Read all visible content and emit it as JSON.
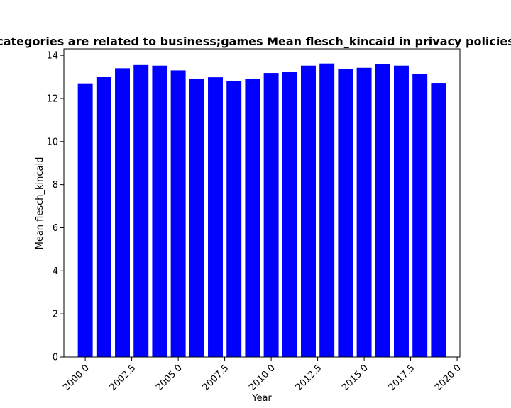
{
  "chart_data": {
    "type": "bar",
    "title": "categories are related to business;games Mean flesch_kincaid in privacy policies",
    "xlabel": "Year",
    "ylabel": "Mean flesch_kincaid",
    "x": [
      2000,
      2001,
      2002,
      2003,
      2004,
      2005,
      2006,
      2007,
      2008,
      2009,
      2010,
      2011,
      2012,
      2013,
      2014,
      2015,
      2016,
      2017,
      2018,
      2019
    ],
    "values": [
      12.7,
      13.0,
      13.4,
      13.55,
      13.52,
      13.3,
      12.92,
      12.98,
      12.82,
      12.92,
      13.18,
      13.22,
      13.52,
      13.62,
      13.38,
      13.42,
      13.58,
      13.52,
      13.12,
      12.72
    ],
    "xlim": [
      1998.85,
      2020.15
    ],
    "ylim": [
      0,
      14.3
    ],
    "x_ticks": [
      2000.0,
      2002.5,
      2005.0,
      2007.5,
      2010.0,
      2012.5,
      2015.0,
      2017.5,
      2020.0
    ],
    "x_tick_labels": [
      "2000.0",
      "2002.5",
      "2005.0",
      "2007.5",
      "2010.0",
      "2012.5",
      "2015.0",
      "2017.5",
      "2020.0"
    ],
    "y_ticks": [
      0,
      2,
      4,
      6,
      8,
      10,
      12,
      14
    ],
    "y_tick_labels": [
      "0",
      "2",
      "4",
      "6",
      "8",
      "10",
      "12",
      "14"
    ],
    "bar_color": "#0000ff",
    "grid": false,
    "legend": false
  }
}
